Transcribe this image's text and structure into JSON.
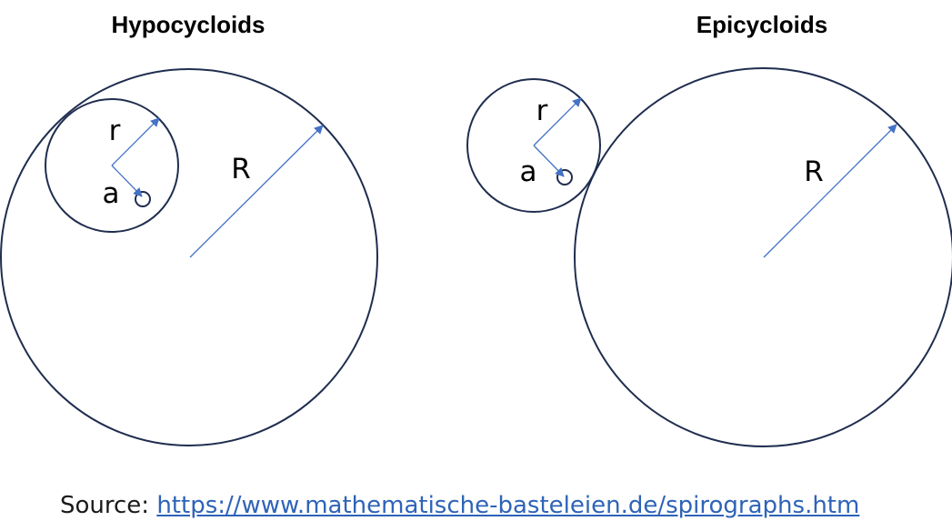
{
  "hypocycloid": {
    "title": "Hypocycloids",
    "label_r": "r",
    "label_a": "a",
    "label_R": "R"
  },
  "epicycloid": {
    "title": "Epicycloids",
    "label_r": "r",
    "label_a": "a",
    "label_R": "R"
  },
  "source": {
    "prefix": "Source:",
    "url": "https://www.mathematische-basteleien.de/spirographs.htm"
  },
  "colors": {
    "circle_stroke": "#1f2d4f",
    "vector": "#4472c4",
    "link": "#2e63b8"
  }
}
